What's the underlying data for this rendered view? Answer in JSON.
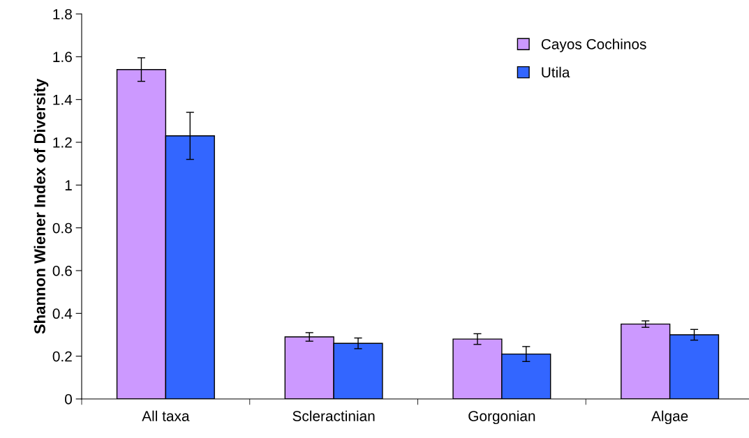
{
  "chart_data": {
    "type": "bar",
    "ylabel": "Shannon Wiener Index of Diversity",
    "categories": [
      "All taxa",
      "Scleractinian",
      "Gorgonian",
      "Algae"
    ],
    "series": [
      {
        "name": "Cayos Cochinos",
        "color": "#cc99ff",
        "values": [
          1.54,
          0.29,
          0.28,
          0.35
        ],
        "errors": [
          0.055,
          0.02,
          0.025,
          0.015
        ]
      },
      {
        "name": "Utila",
        "color": "#3366ff",
        "values": [
          1.23,
          0.26,
          0.21,
          0.3
        ],
        "errors": [
          0.11,
          0.025,
          0.035,
          0.025
        ]
      }
    ],
    "ylim": [
      0,
      1.8
    ],
    "yticks": [
      0,
      0.2,
      0.4,
      0.6,
      0.8,
      1,
      1.2,
      1.4,
      1.6,
      1.8
    ],
    "grid": false,
    "legend": "top right"
  }
}
